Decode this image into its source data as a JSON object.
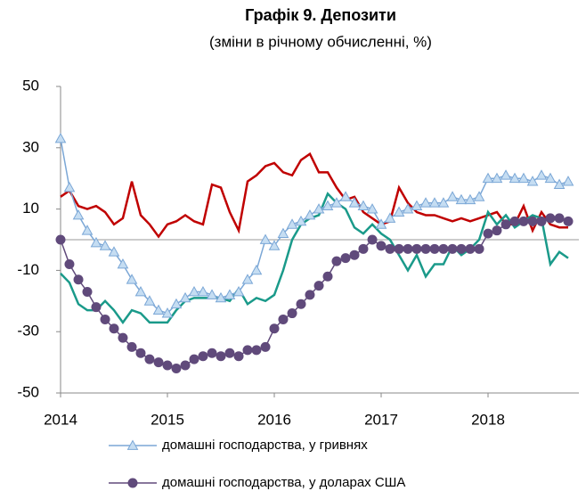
{
  "chart_data": {
    "type": "line",
    "title": "Графік 9. Депозити",
    "subtitle": "(зміни в річному обчисленні, %)",
    "x": [
      2014,
      2014.083,
      2014.167,
      2014.25,
      2014.333,
      2014.417,
      2014.5,
      2014.583,
      2014.667,
      2014.75,
      2014.833,
      2014.917,
      2015,
      2015.083,
      2015.167,
      2015.25,
      2015.333,
      2015.417,
      2015.5,
      2015.583,
      2015.667,
      2015.75,
      2015.833,
      2015.917,
      2016,
      2016.083,
      2016.167,
      2016.25,
      2016.333,
      2016.417,
      2016.5,
      2016.583,
      2016.667,
      2016.75,
      2016.833,
      2016.917,
      2017,
      2017.083,
      2017.167,
      2017.25,
      2017.333,
      2017.417,
      2017.5,
      2017.583,
      2017.667,
      2017.75,
      2017.833,
      2017.917,
      2018,
      2018.083,
      2018.167,
      2018.25,
      2018.333,
      2018.417,
      2018.5,
      2018.583,
      2018.667,
      2018.75
    ],
    "xlim": [
      2014,
      2018.85
    ],
    "xticks": [
      2014,
      2015,
      2016,
      2017,
      2018
    ],
    "ylim": [
      -50,
      50
    ],
    "yticks": [
      50,
      30,
      10,
      -10,
      -30,
      -50
    ],
    "series": [
      {
        "color": "#c00000",
        "values": [
          14,
          16,
          11,
          10,
          11,
          9,
          5,
          7,
          19,
          8,
          5,
          1,
          5,
          6,
          8,
          6,
          5,
          18,
          17,
          9,
          3,
          19,
          21,
          24,
          25,
          22,
          21,
          26,
          28,
          22,
          22,
          17,
          13,
          14,
          9,
          7,
          5,
          6,
          17,
          12,
          9,
          8,
          8,
          7,
          6,
          7,
          6,
          7,
          8,
          9,
          5,
          5,
          11,
          3,
          9,
          5,
          4,
          4
        ]
      },
      {
        "color": "#1a9a8a",
        "values": [
          -11,
          -14,
          -21,
          -23,
          -23,
          -20,
          -23,
          -27,
          -23,
          -24,
          -27,
          -27,
          -27,
          -23,
          -20,
          -19,
          -19,
          -19,
          -19,
          -20,
          -16,
          -21,
          -19,
          -20,
          -18,
          -10,
          0,
          5,
          7,
          8,
          15,
          12,
          10,
          4,
          2,
          5,
          2,
          0,
          -5,
          -10,
          -5,
          -12,
          -8,
          -8,
          -2,
          -5,
          -3,
          0,
          9,
          5,
          8,
          4,
          6,
          8,
          7,
          -8,
          -4,
          -6
        ]
      },
      {
        "name": "домашні господарства, у гривнях",
        "color": "#7ba7d6",
        "marker": "triangle",
        "values": [
          33,
          17,
          8,
          3,
          -1,
          -2,
          -4,
          -8,
          -13,
          -17,
          -20,
          -23,
          -24,
          -21,
          -19,
          -17,
          -17,
          -18,
          -19,
          -18,
          -17,
          -13,
          -10,
          0,
          -2,
          2,
          5,
          6,
          8,
          10,
          11,
          12,
          14,
          12,
          11,
          10,
          5,
          7,
          9,
          10,
          11,
          12,
          12,
          12,
          14,
          13,
          13,
          14,
          20,
          20,
          21,
          20,
          20,
          19,
          21,
          20,
          18,
          19
        ]
      },
      {
        "name": "домашні господарства, у доларах США",
        "color": "#604a7b",
        "marker": "circle",
        "values": [
          0,
          -8,
          -13,
          -17,
          -22,
          -26,
          -29,
          -32,
          -35,
          -37,
          -39,
          -40,
          -41,
          -42,
          -41,
          -39,
          -38,
          -37,
          -38,
          -37,
          -38,
          -36,
          -36,
          -35,
          -29,
          -26,
          -24,
          -21,
          -18,
          -15,
          -12,
          -7,
          -6,
          -5,
          -3,
          0,
          -2,
          -3,
          -3,
          -3,
          -3,
          -3,
          -3,
          -3,
          -3,
          -3,
          -3,
          -3,
          2,
          3,
          5,
          6,
          6,
          6,
          6,
          7,
          7,
          6
        ]
      }
    ]
  }
}
